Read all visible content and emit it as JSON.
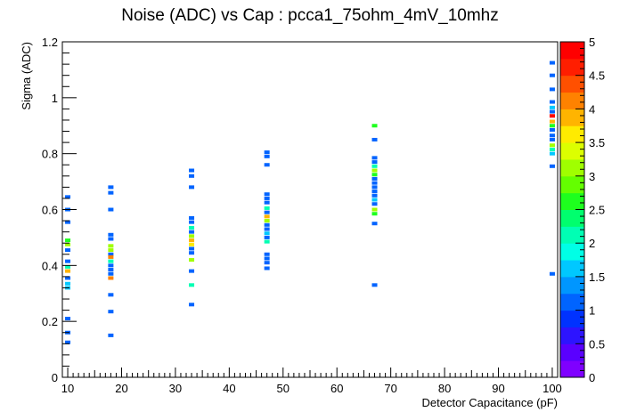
{
  "chart_data": {
    "type": "heatmap",
    "title": "Noise (ADC) vs Cap : pcca1_75ohm_4mV_10mhz",
    "xlabel": "Detector Capacitance (pF)",
    "ylabel": "Sigma (ADC)",
    "xlim": [
      9,
      101
    ],
    "ylim": [
      0,
      1.2
    ],
    "x_ticks": [
      10,
      20,
      30,
      40,
      50,
      60,
      70,
      80,
      90,
      100
    ],
    "y_ticks": [
      0,
      0.2,
      0.4,
      0.6,
      0.8,
      1,
      1.2
    ],
    "zlim": [
      0,
      5
    ],
    "z_ticks": [
      0,
      0.5,
      1,
      1.5,
      2,
      2.5,
      3,
      3.5,
      4,
      4.5,
      5
    ],
    "palette": [
      "#7f00ff",
      "#5a00ff",
      "#2d14ff",
      "#0032ff",
      "#0064ff",
      "#0096ff",
      "#00c8ff",
      "#00ffe6",
      "#00ffb4",
      "#00ff6e",
      "#1eff1e",
      "#64ff00",
      "#a0ff00",
      "#dcff00",
      "#ffeb00",
      "#ffb400",
      "#ff8200",
      "#ff5000",
      "#ff1e00",
      "#ff0000"
    ],
    "points": [
      {
        "x": 10,
        "y": 0.645,
        "z": 1
      },
      {
        "x": 10,
        "y": 0.6,
        "z": 1
      },
      {
        "x": 10,
        "y": 0.555,
        "z": 1
      },
      {
        "x": 10,
        "y": 0.49,
        "z": 2.5
      },
      {
        "x": 10,
        "y": 0.475,
        "z": 3
      },
      {
        "x": 10,
        "y": 0.455,
        "z": 1
      },
      {
        "x": 10,
        "y": 0.415,
        "z": 1
      },
      {
        "x": 10,
        "y": 0.395,
        "z": 2
      },
      {
        "x": 10,
        "y": 0.38,
        "z": 3.8
      },
      {
        "x": 10,
        "y": 0.355,
        "z": 1
      },
      {
        "x": 10,
        "y": 0.335,
        "z": 1.5
      },
      {
        "x": 10,
        "y": 0.32,
        "z": 1.5
      },
      {
        "x": 10,
        "y": 0.21,
        "z": 1
      },
      {
        "x": 10,
        "y": 0.16,
        "z": 1
      },
      {
        "x": 10,
        "y": 0.125,
        "z": 1
      },
      {
        "x": 18,
        "y": 0.68,
        "z": 1
      },
      {
        "x": 18,
        "y": 0.66,
        "z": 1
      },
      {
        "x": 18,
        "y": 0.6,
        "z": 1
      },
      {
        "x": 18,
        "y": 0.51,
        "z": 1
      },
      {
        "x": 18,
        "y": 0.495,
        "z": 1
      },
      {
        "x": 18,
        "y": 0.47,
        "z": 3
      },
      {
        "x": 18,
        "y": 0.455,
        "z": 3
      },
      {
        "x": 18,
        "y": 0.44,
        "z": 1
      },
      {
        "x": 18,
        "y": 0.43,
        "z": 4.2
      },
      {
        "x": 18,
        "y": 0.415,
        "z": 2
      },
      {
        "x": 18,
        "y": 0.4,
        "z": 1.2
      },
      {
        "x": 18,
        "y": 0.385,
        "z": 1.2
      },
      {
        "x": 18,
        "y": 0.37,
        "z": 1.2
      },
      {
        "x": 18,
        "y": 0.355,
        "z": 4
      },
      {
        "x": 18,
        "y": 0.295,
        "z": 1
      },
      {
        "x": 18,
        "y": 0.235,
        "z": 1
      },
      {
        "x": 18,
        "y": 0.15,
        "z": 1
      },
      {
        "x": 33,
        "y": 0.74,
        "z": 1
      },
      {
        "x": 33,
        "y": 0.72,
        "z": 1
      },
      {
        "x": 33,
        "y": 0.68,
        "z": 1
      },
      {
        "x": 33,
        "y": 0.57,
        "z": 1
      },
      {
        "x": 33,
        "y": 0.555,
        "z": 1
      },
      {
        "x": 33,
        "y": 0.535,
        "z": 2
      },
      {
        "x": 33,
        "y": 0.52,
        "z": 1
      },
      {
        "x": 33,
        "y": 0.505,
        "z": 3
      },
      {
        "x": 33,
        "y": 0.49,
        "z": 3.8
      },
      {
        "x": 33,
        "y": 0.475,
        "z": 3.5
      },
      {
        "x": 33,
        "y": 0.46,
        "z": 1
      },
      {
        "x": 33,
        "y": 0.445,
        "z": 1
      },
      {
        "x": 33,
        "y": 0.42,
        "z": 3.2
      },
      {
        "x": 33,
        "y": 0.38,
        "z": 1
      },
      {
        "x": 33,
        "y": 0.33,
        "z": 2
      },
      {
        "x": 33,
        "y": 0.26,
        "z": 1
      },
      {
        "x": 47,
        "y": 0.805,
        "z": 1
      },
      {
        "x": 47,
        "y": 0.79,
        "z": 1
      },
      {
        "x": 47,
        "y": 0.76,
        "z": 1
      },
      {
        "x": 47,
        "y": 0.655,
        "z": 1
      },
      {
        "x": 47,
        "y": 0.64,
        "z": 1
      },
      {
        "x": 47,
        "y": 0.625,
        "z": 1
      },
      {
        "x": 47,
        "y": 0.605,
        "z": 2
      },
      {
        "x": 47,
        "y": 0.59,
        "z": 1
      },
      {
        "x": 47,
        "y": 0.575,
        "z": 3.8
      },
      {
        "x": 47,
        "y": 0.56,
        "z": 3.2
      },
      {
        "x": 47,
        "y": 0.545,
        "z": 1.2
      },
      {
        "x": 47,
        "y": 0.53,
        "z": 1
      },
      {
        "x": 47,
        "y": 0.515,
        "z": 1.5
      },
      {
        "x": 47,
        "y": 0.5,
        "z": 1
      },
      {
        "x": 47,
        "y": 0.485,
        "z": 2.2
      },
      {
        "x": 47,
        "y": 0.44,
        "z": 1
      },
      {
        "x": 47,
        "y": 0.425,
        "z": 1
      },
      {
        "x": 47,
        "y": 0.41,
        "z": 1
      },
      {
        "x": 47,
        "y": 0.39,
        "z": 1
      },
      {
        "x": 67,
        "y": 0.9,
        "z": 2.5
      },
      {
        "x": 67,
        "y": 0.85,
        "z": 1
      },
      {
        "x": 67,
        "y": 0.785,
        "z": 1
      },
      {
        "x": 67,
        "y": 0.77,
        "z": 1
      },
      {
        "x": 67,
        "y": 0.755,
        "z": 2
      },
      {
        "x": 67,
        "y": 0.74,
        "z": 3
      },
      {
        "x": 67,
        "y": 0.725,
        "z": 2.5
      },
      {
        "x": 67,
        "y": 0.71,
        "z": 1.2
      },
      {
        "x": 67,
        "y": 0.695,
        "z": 1
      },
      {
        "x": 67,
        "y": 0.68,
        "z": 1
      },
      {
        "x": 67,
        "y": 0.665,
        "z": 1
      },
      {
        "x": 67,
        "y": 0.65,
        "z": 1
      },
      {
        "x": 67,
        "y": 0.635,
        "z": 1.5
      },
      {
        "x": 67,
        "y": 0.62,
        "z": 1.2
      },
      {
        "x": 67,
        "y": 0.6,
        "z": 3
      },
      {
        "x": 67,
        "y": 0.585,
        "z": 2.5
      },
      {
        "x": 67,
        "y": 0.55,
        "z": 1
      },
      {
        "x": 67,
        "y": 0.33,
        "z": 1
      },
      {
        "x": 100,
        "y": 1.125,
        "z": 1
      },
      {
        "x": 100,
        "y": 1.08,
        "z": 1
      },
      {
        "x": 100,
        "y": 1.03,
        "z": 1
      },
      {
        "x": 100,
        "y": 0.985,
        "z": 1
      },
      {
        "x": 100,
        "y": 0.965,
        "z": 1.5
      },
      {
        "x": 100,
        "y": 0.95,
        "z": 1
      },
      {
        "x": 100,
        "y": 0.935,
        "z": 5
      },
      {
        "x": 100,
        "y": 0.915,
        "z": 3.8
      },
      {
        "x": 100,
        "y": 0.9,
        "z": 2.5
      },
      {
        "x": 100,
        "y": 0.885,
        "z": 1
      },
      {
        "x": 100,
        "y": 0.865,
        "z": 1
      },
      {
        "x": 100,
        "y": 0.85,
        "z": 1
      },
      {
        "x": 100,
        "y": 0.83,
        "z": 3
      },
      {
        "x": 100,
        "y": 0.815,
        "z": 2
      },
      {
        "x": 100,
        "y": 0.8,
        "z": 1.5
      },
      {
        "x": 100,
        "y": 0.755,
        "z": 1
      },
      {
        "x": 100,
        "y": 0.37,
        "z": 1
      }
    ]
  }
}
